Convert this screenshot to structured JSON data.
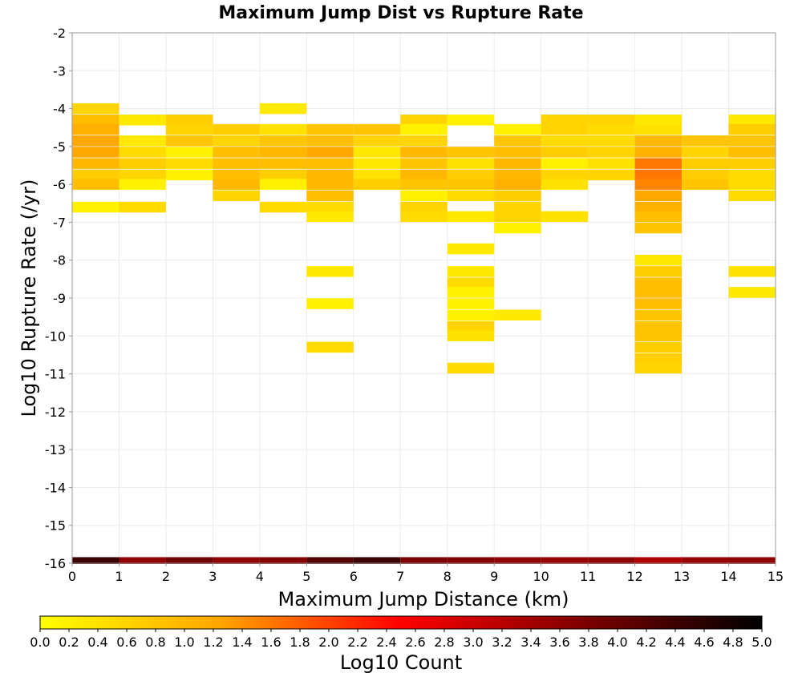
{
  "chart_data": {
    "type": "heatmap",
    "title": "Maximum Jump Dist vs Rupture Rate",
    "xlabel": "Maximum Jump Distance (km)",
    "ylabel": "Log10 Rupture Rate (/yr)",
    "xlim": [
      0,
      15
    ],
    "ylim": [
      -16,
      -2
    ],
    "x_ticks": [
      "0",
      "1",
      "2",
      "3",
      "4",
      "5",
      "6",
      "7",
      "8",
      "9",
      "10",
      "11",
      "12",
      "13",
      "14",
      "15"
    ],
    "y_ticks": [
      "-2",
      "-3",
      "-4",
      "-5",
      "-6",
      "-7",
      "-8",
      "-9",
      "-10",
      "-11",
      "-12",
      "-13",
      "-14",
      "-15",
      "-16"
    ],
    "grid": true,
    "x_bin_width": 1,
    "y_bin_width": 0.285,
    "colorbar": {
      "label": "Log10 Count",
      "range": [
        0,
        5
      ],
      "ticks": [
        "0.0",
        "0.2",
        "0.4",
        "0.6",
        "0.8",
        "1.0",
        "1.2",
        "1.4",
        "1.6",
        "1.8",
        "2.0",
        "2.2",
        "2.4",
        "2.6",
        "2.8",
        "3.0",
        "3.2",
        "3.4",
        "3.6",
        "3.8",
        "4.0",
        "4.2",
        "4.4",
        "4.6",
        "4.8",
        "5.0"
      ],
      "colors": [
        "#ffff00",
        "#ffa500",
        "#ff0000",
        "#800000",
        "#000000"
      ]
    },
    "columns": [
      {
        "x": 0,
        "cells": [
          [
            -4.0,
            0.6
          ],
          [
            -4.3,
            0.9
          ],
          [
            -4.55,
            1.1
          ],
          [
            -4.85,
            1.2
          ],
          [
            -5.15,
            1.2
          ],
          [
            -5.45,
            1.0
          ],
          [
            -5.75,
            0.7
          ],
          [
            -6.0,
            0.9
          ],
          [
            -6.6,
            0.2
          ]
        ]
      },
      {
        "x": 1,
        "cells": [
          [
            -4.3,
            0.3
          ],
          [
            -4.85,
            0.3
          ],
          [
            -5.15,
            0.5
          ],
          [
            -5.45,
            0.7
          ],
          [
            -5.75,
            0.6
          ],
          [
            -6.0,
            0.2
          ],
          [
            -6.6,
            0.5
          ]
        ]
      },
      {
        "x": 2,
        "cells": [
          [
            -4.3,
            0.7
          ],
          [
            -4.55,
            0.6
          ],
          [
            -4.85,
            0.8
          ],
          [
            -5.15,
            0.2
          ],
          [
            -5.45,
            0.5
          ],
          [
            -5.75,
            0.2
          ]
        ]
      },
      {
        "x": 3,
        "cells": [
          [
            -4.55,
            0.7
          ],
          [
            -4.85,
            0.6
          ],
          [
            -5.15,
            0.9
          ],
          [
            -5.45,
            0.9
          ],
          [
            -5.75,
            0.9
          ],
          [
            -6.0,
            1.0
          ],
          [
            -6.3,
            0.6
          ]
        ]
      },
      {
        "x": 4,
        "cells": [
          [
            -4.0,
            0.3
          ],
          [
            -4.55,
            0.4
          ],
          [
            -4.85,
            0.8
          ],
          [
            -5.15,
            1.0
          ],
          [
            -5.45,
            0.9
          ],
          [
            -5.75,
            0.7
          ],
          [
            -6.0,
            0.2
          ],
          [
            -6.6,
            0.5
          ]
        ]
      },
      {
        "x": 5,
        "cells": [
          [
            -4.55,
            0.8
          ],
          [
            -4.85,
            0.9
          ],
          [
            -5.15,
            1.2
          ],
          [
            -5.45,
            0.9
          ],
          [
            -5.75,
            1.0
          ],
          [
            -6.0,
            1.0
          ],
          [
            -6.3,
            0.9
          ],
          [
            -6.6,
            0.5
          ],
          [
            -6.85,
            0.3
          ],
          [
            -8.3,
            0.3
          ],
          [
            -9.15,
            0.2
          ],
          [
            -10.3,
            0.5
          ]
        ]
      },
      {
        "x": 6,
        "cells": [
          [
            -4.55,
            0.8
          ],
          [
            -4.85,
            0.6
          ],
          [
            -5.15,
            0.3
          ],
          [
            -5.45,
            0.3
          ],
          [
            -5.75,
            0.4
          ],
          [
            -6.0,
            0.7
          ]
        ]
      },
      {
        "x": 7,
        "cells": [
          [
            -4.3,
            0.6
          ],
          [
            -4.55,
            0.2
          ],
          [
            -4.85,
            0.6
          ],
          [
            -5.15,
            1.0
          ],
          [
            -5.45,
            0.8
          ],
          [
            -5.75,
            1.0
          ],
          [
            -6.0,
            0.8
          ],
          [
            -6.3,
            0.2
          ],
          [
            -6.6,
            0.6
          ],
          [
            -6.85,
            0.5
          ]
        ]
      },
      {
        "x": 8,
        "cells": [
          [
            -4.3,
            0.2
          ],
          [
            -5.15,
            0.8
          ],
          [
            -5.45,
            0.4
          ],
          [
            -5.75,
            0.7
          ],
          [
            -6.0,
            0.8
          ],
          [
            -6.3,
            0.5
          ],
          [
            -6.85,
            0.3
          ],
          [
            -7.7,
            0.3
          ],
          [
            -8.3,
            0.3
          ],
          [
            -8.6,
            0.5
          ],
          [
            -8.85,
            0.2
          ],
          [
            -9.15,
            0.2
          ],
          [
            -9.45,
            0.2
          ],
          [
            -9.75,
            0.6
          ],
          [
            -10.0,
            0.4
          ],
          [
            -10.85,
            0.5
          ]
        ]
      },
      {
        "x": 9,
        "cells": [
          [
            -4.55,
            0.2
          ],
          [
            -4.85,
            0.8
          ],
          [
            -5.15,
            0.9
          ],
          [
            -5.45,
            1.0
          ],
          [
            -5.75,
            1.0
          ],
          [
            -6.0,
            1.1
          ],
          [
            -6.3,
            0.7
          ],
          [
            -6.6,
            0.6
          ],
          [
            -6.85,
            0.6
          ],
          [
            -7.15,
            0.2
          ],
          [
            -9.45,
            0.3
          ]
        ]
      },
      {
        "x": 10,
        "cells": [
          [
            -4.3,
            0.6
          ],
          [
            -4.55,
            0.6
          ],
          [
            -4.85,
            0.5
          ],
          [
            -5.15,
            0.7
          ],
          [
            -5.45,
            0.2
          ],
          [
            -5.75,
            0.6
          ],
          [
            -6.0,
            0.4
          ],
          [
            -6.85,
            0.4
          ]
        ]
      },
      {
        "x": 11,
        "cells": [
          [
            -4.3,
            0.6
          ],
          [
            -4.55,
            0.5
          ],
          [
            -4.85,
            0.5
          ],
          [
            -5.15,
            0.6
          ],
          [
            -5.45,
            0.4
          ],
          [
            -5.75,
            0.6
          ]
        ]
      },
      {
        "x": 12,
        "cells": [
          [
            -4.3,
            0.3
          ],
          [
            -4.55,
            0.4
          ],
          [
            -4.85,
            1.0
          ],
          [
            -5.15,
            1.1
          ],
          [
            -5.45,
            1.6
          ],
          [
            -5.75,
            1.6
          ],
          [
            -6.0,
            1.5
          ],
          [
            -6.3,
            1.2
          ],
          [
            -6.6,
            1.1
          ],
          [
            -6.85,
            0.9
          ],
          [
            -7.15,
            0.8
          ],
          [
            -8.0,
            0.3
          ],
          [
            -8.3,
            0.7
          ],
          [
            -8.6,
            0.9
          ],
          [
            -8.85,
            0.9
          ],
          [
            -9.15,
            0.9
          ],
          [
            -9.45,
            0.8
          ],
          [
            -9.75,
            0.8
          ],
          [
            -10.0,
            0.8
          ],
          [
            -10.3,
            0.7
          ],
          [
            -10.6,
            0.7
          ],
          [
            -10.85,
            0.6
          ]
        ]
      },
      {
        "x": 13,
        "cells": [
          [
            -4.85,
            0.8
          ],
          [
            -5.15,
            0.6
          ],
          [
            -5.45,
            0.7
          ],
          [
            -5.75,
            0.7
          ],
          [
            -6.0,
            0.8
          ]
        ]
      },
      {
        "x": 14,
        "cells": [
          [
            -4.3,
            0.3
          ],
          [
            -4.55,
            0.7
          ],
          [
            -4.85,
            0.8
          ],
          [
            -5.15,
            0.9
          ],
          [
            -5.45,
            0.7
          ],
          [
            -5.75,
            0.5
          ],
          [
            -6.0,
            0.5
          ],
          [
            -6.3,
            0.5
          ],
          [
            -8.3,
            0.4
          ],
          [
            -8.85,
            0.3
          ]
        ]
      }
    ],
    "bottom_row": {
      "y": -16,
      "values": [
        4.4,
        3.6,
        3.9,
        3.6,
        3.7,
        4.2,
        4.4,
        3.8,
        3.7,
        3.6,
        3.5,
        3.6,
        3.3,
        3.5,
        3.6
      ]
    }
  }
}
